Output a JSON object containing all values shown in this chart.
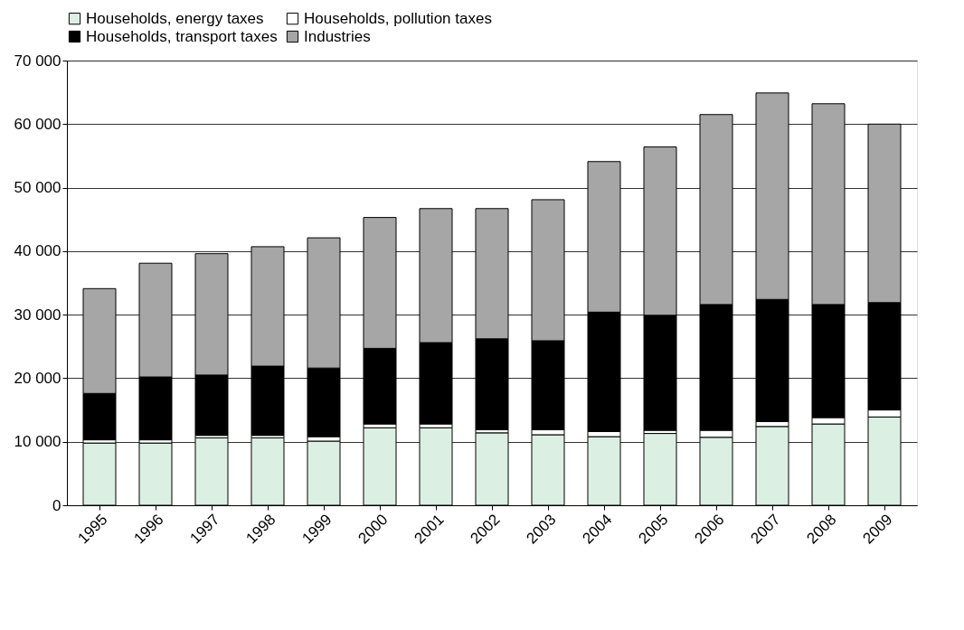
{
  "chart_data": {
    "type": "bar",
    "stacked": true,
    "categories": [
      "1995",
      "1996",
      "1997",
      "1998",
      "1999",
      "2000",
      "2001",
      "2002",
      "2003",
      "2004",
      "2005",
      "2006",
      "2007",
      "2008",
      "2009"
    ],
    "series": [
      {
        "name": "Households, energy taxes",
        "color": "#dcefe3",
        "values": [
          9800,
          9800,
          10600,
          10600,
          10100,
          12200,
          12200,
          11400,
          11100,
          10800,
          11300,
          10700,
          12400,
          12800,
          13900
        ]
      },
      {
        "name": "Households, pollution taxes",
        "color": "#ffffff",
        "values": [
          500,
          500,
          400,
          400,
          700,
          600,
          600,
          500,
          800,
          800,
          500,
          1100,
          800,
          1000,
          1100
        ]
      },
      {
        "name": "Households, transport taxes",
        "color": "#000000",
        "values": [
          7300,
          9900,
          9500,
          10900,
          10800,
          11900,
          12800,
          14300,
          14000,
          18800,
          18100,
          19800,
          19200,
          17800,
          16900
        ]
      },
      {
        "name": "Industries",
        "color": "#a6a6a6",
        "values": [
          16500,
          17900,
          19100,
          18800,
          20500,
          20600,
          21100,
          20500,
          22200,
          23700,
          26500,
          29900,
          32500,
          31600,
          28100
        ]
      }
    ],
    "ylim": [
      0,
      70000
    ],
    "yticks": [
      {
        "value": 0,
        "label": "0"
      },
      {
        "value": 10000,
        "label": "10 000"
      },
      {
        "value": 20000,
        "label": "20 000"
      },
      {
        "value": 30000,
        "label": "30 000"
      },
      {
        "value": 40000,
        "label": "40 000"
      },
      {
        "value": 50000,
        "label": "50 000"
      },
      {
        "value": 60000,
        "label": "60 000"
      },
      {
        "value": 70000,
        "label": "70 000"
      }
    ],
    "grid": "y",
    "legend": "top"
  }
}
